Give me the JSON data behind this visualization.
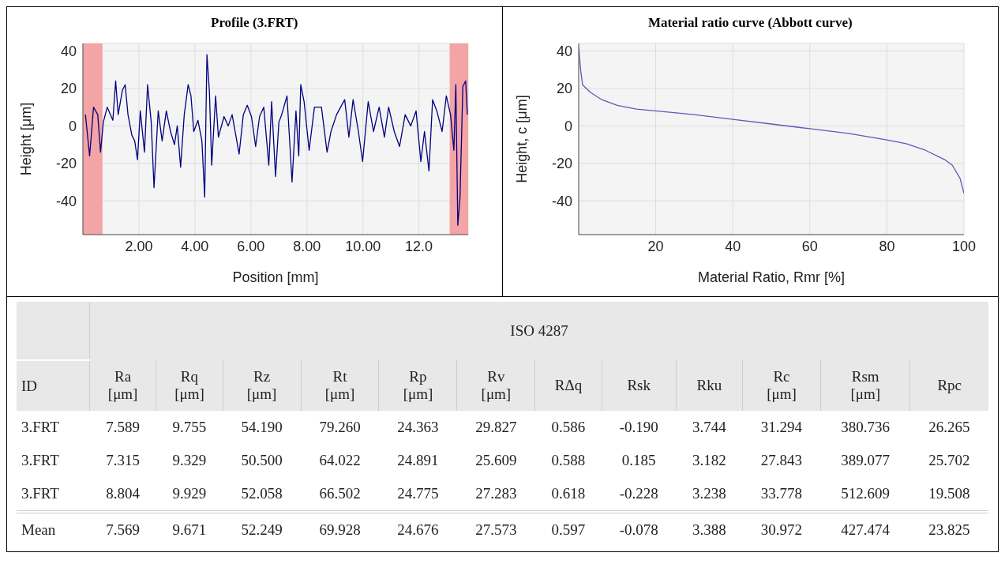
{
  "chart_data": [
    {
      "type": "line",
      "title": "Profile (3.FRT)",
      "xlabel": "Position [mm]",
      "ylabel": "Height [μm]",
      "grid": true,
      "line_style": "solid",
      "xlim": [
        0,
        13.76
      ],
      "ylim": [
        -58,
        44
      ],
      "xticks": [
        {
          "value": 2,
          "label": "2.00"
        },
        {
          "value": 4,
          "label": "4.00"
        },
        {
          "value": 6,
          "label": "6.00"
        },
        {
          "value": 8,
          "label": "8.00"
        },
        {
          "value": 10,
          "label": "10.00"
        },
        {
          "value": 12,
          "label": "12.0"
        }
      ],
      "yticks": [
        -40,
        -20,
        0,
        20,
        40
      ],
      "bands": [
        {
          "axis": "x",
          "from": 0,
          "to": 0.7,
          "color": "#f4a4a4"
        },
        {
          "axis": "x",
          "from": 13.1,
          "to": 13.76,
          "color": "#f4a4a4"
        }
      ],
      "x": [
        0.09,
        0.24,
        0.38,
        0.53,
        0.63,
        0.73,
        0.87,
        1.07,
        1.17,
        1.26,
        1.41,
        1.51,
        1.61,
        1.75,
        1.85,
        1.95,
        2.05,
        2.2,
        2.31,
        2.44,
        2.54,
        2.69,
        2.83,
        2.98,
        3.13,
        3.27,
        3.37,
        3.49,
        3.62,
        3.76,
        3.86,
        3.96,
        4.11,
        4.25,
        4.35,
        4.43,
        4.52,
        4.6,
        4.74,
        4.84,
        5.04,
        5.19,
        5.33,
        5.58,
        5.73,
        5.87,
        6.02,
        6.17,
        6.31,
        6.46,
        6.64,
        6.74,
        6.88,
        7.0,
        7.1,
        7.29,
        7.47,
        7.61,
        7.71,
        7.78,
        7.9,
        8.08,
        8.27,
        8.52,
        8.72,
        8.86,
        9.06,
        9.35,
        9.5,
        9.65,
        9.84,
        9.99,
        10.19,
        10.38,
        10.58,
        10.77,
        10.92,
        11.12,
        11.31,
        11.51,
        11.71,
        11.9,
        12.07,
        12.2,
        12.36,
        12.49,
        12.64,
        12.83,
        12.98,
        13.13,
        13.25,
        13.32,
        13.39,
        13.47,
        13.57,
        13.67,
        13.73
      ],
      "series": [
        {
          "color": "#000080",
          "values": [
            6,
            -16,
            10,
            6,
            -14,
            2,
            10,
            3,
            24,
            6,
            19,
            22,
            6,
            -5,
            -8,
            -18,
            8,
            -14,
            22,
            2,
            -33,
            8,
            -8,
            8,
            -3,
            -10,
            0,
            -22,
            6,
            22,
            16,
            -3,
            3,
            -8,
            -38,
            38,
            18,
            -21,
            16,
            -6,
            5,
            0,
            6,
            -15,
            6,
            11,
            5,
            -11,
            5,
            10,
            -21,
            13,
            -27,
            2,
            6,
            16,
            -30,
            8,
            -16,
            22,
            13,
            -13,
            10,
            10,
            -14,
            -3,
            6,
            14,
            -6,
            14,
            -3,
            -19,
            13,
            -3,
            10,
            -6,
            10,
            -3,
            -11,
            6,
            0,
            8,
            -19,
            -3,
            -24,
            14,
            8,
            -3,
            16,
            6,
            -13,
            22,
            -53,
            -38,
            21,
            24,
            6
          ]
        }
      ]
    },
    {
      "type": "line",
      "title": "Material ratio curve (Abbott curve)",
      "xlabel": "Material Ratio, Rmr [%]",
      "ylabel": "Height, c [μm]",
      "grid": true,
      "line_style": "solid",
      "xlim": [
        0,
        100
      ],
      "ylim": [
        -58,
        44
      ],
      "xticks": [
        20,
        40,
        60,
        80,
        100
      ],
      "yticks": [
        -40,
        -20,
        0,
        20,
        40
      ],
      "x": [
        0,
        0.5,
        1,
        3,
        6,
        10,
        15,
        20,
        30,
        40,
        50,
        60,
        70,
        80,
        85,
        90,
        95,
        97,
        99,
        100
      ],
      "series": [
        {
          "color": "#5a5ab8",
          "values": [
            42,
            30,
            22,
            18,
            14,
            11,
            9,
            8,
            6,
            3.5,
            1,
            -1.5,
            -4,
            -7.5,
            -9.5,
            -13,
            -18,
            -21,
            -28,
            -36
          ]
        }
      ]
    },
    {
      "type": "other",
      "title": "ISO 4287",
      "data_labels": true,
      "xlabel": "ID",
      "categories": [
        "Ra [μm]",
        "Rq [μm]",
        "Rz [μm]",
        "Rt [μm]",
        "Rp [μm]",
        "Rv [μm]",
        "RΔq",
        "Rsk",
        "Rku",
        "Rc [μm]",
        "Rsm [μm]",
        "Rpc"
      ],
      "series": [
        {
          "name": "3.FRT",
          "values": [
            7.589,
            9.755,
            54.19,
            79.26,
            24.363,
            29.827,
            0.586,
            -0.19,
            3.744,
            31.294,
            380.736,
            26.265
          ],
          "value_labels": [
            "7.589",
            "9.755",
            "54.190",
            "79.260",
            "24.363",
            "29.827",
            "0.586",
            "-0.190",
            "3.744",
            "31.294",
            "380.736",
            "26.265"
          ]
        },
        {
          "name": "3.FRT",
          "values": [
            7.315,
            9.329,
            50.5,
            64.022,
            24.891,
            25.609,
            0.588,
            0.185,
            3.182,
            27.843,
            389.077,
            25.702
          ],
          "value_labels": [
            "7.315",
            "9.329",
            "50.500",
            "64.022",
            "24.891",
            "25.609",
            "0.588",
            "0.185",
            "3.182",
            "27.843",
            "389.077",
            "25.702"
          ]
        },
        {
          "name": "3.FRT",
          "values": [
            8.804,
            9.929,
            52.058,
            66.502,
            24.775,
            27.283,
            0.618,
            -0.228,
            3.238,
            33.778,
            512.609,
            19.508
          ]
        },
        {
          "name": "Mean",
          "values": [
            7.569,
            9.671,
            52.249,
            69.928,
            24.676,
            27.573,
            0.597,
            -0.078,
            3.388,
            30.972,
            427.474,
            23.825
          ]
        }
      ]
    }
  ]
}
